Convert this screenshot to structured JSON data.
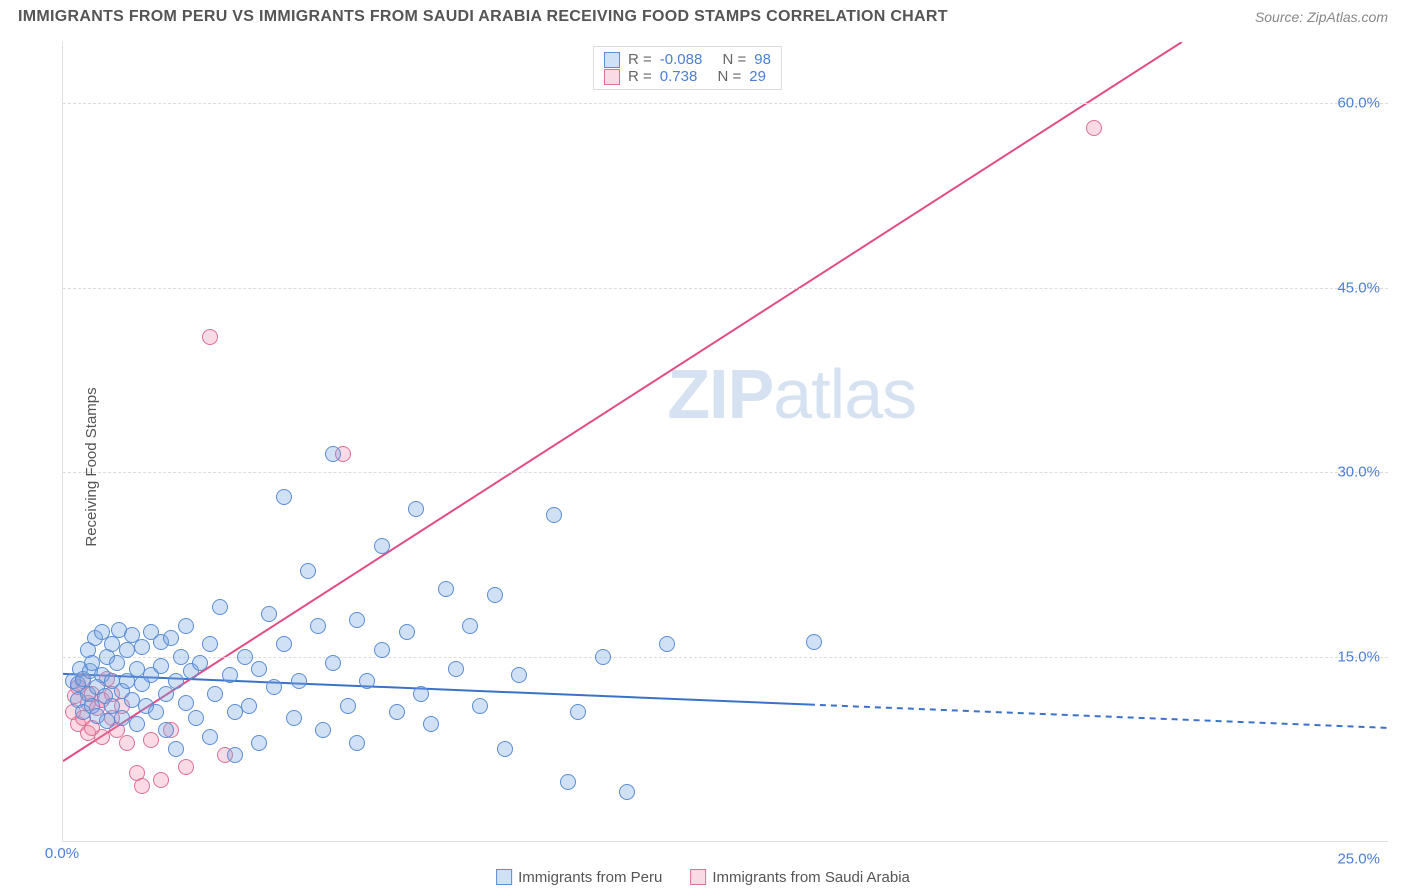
{
  "header": {
    "title": "IMMIGRANTS FROM PERU VS IMMIGRANTS FROM SAUDI ARABIA RECEIVING FOOD STAMPS CORRELATION CHART",
    "source_prefix": "Source: ",
    "source": "ZipAtlas.com"
  },
  "ylabel": "Receiving Food Stamps",
  "watermark": {
    "part1": "ZIP",
    "part2": "atlas"
  },
  "axes": {
    "xlim": [
      0,
      27
    ],
    "ylim": [
      0,
      65
    ],
    "yticks": [
      15,
      30,
      45,
      60
    ],
    "ytick_labels": [
      "15.0%",
      "30.0%",
      "45.0%",
      "60.0%"
    ],
    "x_origin_label": "0.0%",
    "x_right_label": "25.0%",
    "grid_color": "#dddddd",
    "ytick_color": "#4a7fd8"
  },
  "legend_top": {
    "rows": [
      {
        "swatch_fill": "rgba(120,165,225,0.35)",
        "swatch_stroke": "#5a8dd6",
        "r_label": "R =",
        "r_value": "-0.088",
        "n_label": "N =",
        "n_value": "98"
      },
      {
        "swatch_fill": "rgba(238,140,170,0.32)",
        "swatch_stroke": "#e07095",
        "r_label": "R =",
        "r_value": " 0.738",
        "n_label": "N =",
        "n_value": "29"
      }
    ]
  },
  "legend_bottom": [
    {
      "swatch_fill": "rgba(120,165,225,0.35)",
      "swatch_stroke": "#5a8dd6",
      "label": "Immigrants from Peru"
    },
    {
      "swatch_fill": "rgba(238,140,170,0.32)",
      "swatch_stroke": "#e07095",
      "label": "Immigrants from Saudi Arabia"
    }
  ],
  "series": {
    "peru": {
      "color_fill": "rgba(120,165,225,0.35)",
      "color_stroke": "#5a8dd6",
      "line_color": "#3b72c9",
      "line_width": 2,
      "regression": {
        "x1": 0,
        "y1": 13.6,
        "x2_solid": 15.2,
        "y2_solid": 11.1,
        "x2_dashed": 27,
        "y2_dashed": 9.2
      },
      "points": [
        [
          0.2,
          13
        ],
        [
          0.3,
          11.5
        ],
        [
          0.3,
          12.8
        ],
        [
          0.35,
          14
        ],
        [
          0.4,
          10.5
        ],
        [
          0.4,
          13.2
        ],
        [
          0.5,
          12
        ],
        [
          0.5,
          15.5
        ],
        [
          0.55,
          13.8
        ],
        [
          0.6,
          11
        ],
        [
          0.6,
          14.5
        ],
        [
          0.65,
          16.5
        ],
        [
          0.7,
          12.5
        ],
        [
          0.7,
          10.2
        ],
        [
          0.8,
          13.5
        ],
        [
          0.8,
          17
        ],
        [
          0.85,
          11.8
        ],
        [
          0.9,
          15
        ],
        [
          0.9,
          9.8
        ],
        [
          1.0,
          13
        ],
        [
          1.0,
          16
        ],
        [
          1.0,
          11
        ],
        [
          1.1,
          14.5
        ],
        [
          1.15,
          17.2
        ],
        [
          1.2,
          12.2
        ],
        [
          1.2,
          10
        ],
        [
          1.3,
          15.5
        ],
        [
          1.3,
          13
        ],
        [
          1.4,
          11.5
        ],
        [
          1.4,
          16.8
        ],
        [
          1.5,
          14
        ],
        [
          1.5,
          9.5
        ],
        [
          1.6,
          12.8
        ],
        [
          1.6,
          15.8
        ],
        [
          1.7,
          11
        ],
        [
          1.8,
          13.5
        ],
        [
          1.8,
          17
        ],
        [
          1.9,
          10.5
        ],
        [
          2.0,
          14.2
        ],
        [
          2.0,
          16.2
        ],
        [
          2.1,
          12
        ],
        [
          2.1,
          9
        ],
        [
          2.2,
          16.5
        ],
        [
          2.3,
          13
        ],
        [
          2.3,
          7.5
        ],
        [
          2.4,
          15
        ],
        [
          2.5,
          11.2
        ],
        [
          2.5,
          17.5
        ],
        [
          2.6,
          13.8
        ],
        [
          2.7,
          10
        ],
        [
          2.8,
          14.5
        ],
        [
          3.0,
          16
        ],
        [
          3.0,
          8.5
        ],
        [
          3.1,
          12
        ],
        [
          3.2,
          19
        ],
        [
          3.4,
          13.5
        ],
        [
          3.5,
          10.5
        ],
        [
          3.5,
          7
        ],
        [
          3.7,
          15
        ],
        [
          3.8,
          11
        ],
        [
          4.0,
          14
        ],
        [
          4.0,
          8
        ],
        [
          4.2,
          18.5
        ],
        [
          4.3,
          12.5
        ],
        [
          4.5,
          16
        ],
        [
          4.5,
          28
        ],
        [
          4.7,
          10
        ],
        [
          4.8,
          13
        ],
        [
          5.0,
          22
        ],
        [
          5.2,
          17.5
        ],
        [
          5.3,
          9
        ],
        [
          5.5,
          14.5
        ],
        [
          5.5,
          31.5
        ],
        [
          5.8,
          11
        ],
        [
          6.0,
          18
        ],
        [
          6.0,
          8
        ],
        [
          6.2,
          13
        ],
        [
          6.5,
          15.5
        ],
        [
          6.5,
          24
        ],
        [
          6.8,
          10.5
        ],
        [
          7.0,
          17
        ],
        [
          7.2,
          27
        ],
        [
          7.3,
          12
        ],
        [
          7.5,
          9.5
        ],
        [
          7.8,
          20.5
        ],
        [
          8.0,
          14
        ],
        [
          8.3,
          17.5
        ],
        [
          8.5,
          11
        ],
        [
          8.8,
          20
        ],
        [
          9.0,
          7.5
        ],
        [
          9.3,
          13.5
        ],
        [
          10.0,
          26.5
        ],
        [
          10.3,
          4.8
        ],
        [
          11.0,
          15
        ],
        [
          11.5,
          4
        ],
        [
          12.3,
          16
        ],
        [
          15.3,
          16.2
        ],
        [
          10.5,
          10.5
        ]
      ]
    },
    "saudi": {
      "color_fill": "rgba(238,140,170,0.32)",
      "color_stroke": "#e07095",
      "line_color": "#e14d84",
      "line_width": 2,
      "regression": {
        "x1": 0,
        "y1": 6.5,
        "x2": 22.8,
        "y2": 65
      },
      "points": [
        [
          0.2,
          10.5
        ],
        [
          0.25,
          11.8
        ],
        [
          0.3,
          9.5
        ],
        [
          0.3,
          12.5
        ],
        [
          0.4,
          10
        ],
        [
          0.4,
          13
        ],
        [
          0.5,
          11.2
        ],
        [
          0.5,
          8.8
        ],
        [
          0.6,
          12
        ],
        [
          0.6,
          9.2
        ],
        [
          0.7,
          10.8
        ],
        [
          0.8,
          11.5
        ],
        [
          0.8,
          8.5
        ],
        [
          0.9,
          13.2
        ],
        [
          1.0,
          10
        ],
        [
          1.0,
          12
        ],
        [
          1.1,
          9
        ],
        [
          1.2,
          11
        ],
        [
          1.3,
          8
        ],
        [
          1.5,
          5.5
        ],
        [
          1.6,
          4.5
        ],
        [
          1.8,
          8.2
        ],
        [
          2.0,
          5
        ],
        [
          2.2,
          9
        ],
        [
          2.5,
          6
        ],
        [
          3.0,
          41
        ],
        [
          3.3,
          7
        ],
        [
          5.7,
          31.5
        ],
        [
          21,
          58
        ]
      ]
    }
  }
}
